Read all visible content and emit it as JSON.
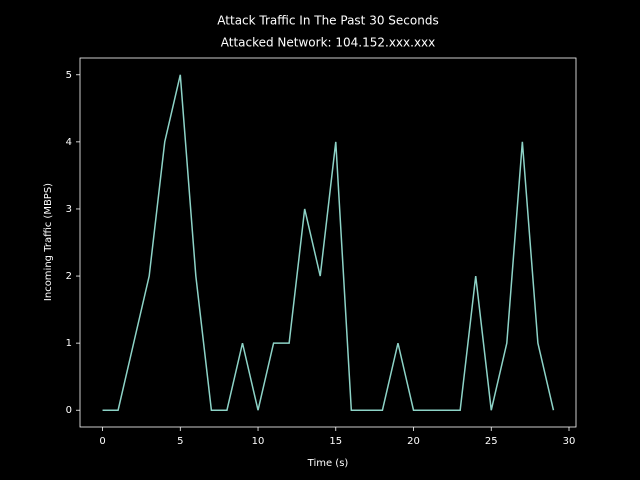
{
  "chart_data": {
    "type": "line",
    "title": "Attack Traffic In The Past 30 Seconds",
    "subtitle": "Attacked Network: 104.152.xxx.xxx",
    "x_label": "Time (s)",
    "y_label": "Incoming Traffic (MBPS)",
    "x": [
      0,
      1,
      2,
      3,
      4,
      5,
      6,
      7,
      8,
      9,
      10,
      11,
      12,
      13,
      14,
      15,
      16,
      17,
      18,
      19,
      20,
      21,
      22,
      23,
      24,
      25,
      26,
      27,
      28,
      29
    ],
    "series": [
      {
        "name": "traffic",
        "color": "#8dd3c7",
        "values": [
          0,
          0,
          1,
          2,
          4,
          5,
          2,
          0,
          0,
          1,
          0,
          1,
          1,
          3,
          2,
          4,
          0,
          0,
          0,
          1,
          0,
          0,
          0,
          0,
          2,
          0,
          1,
          4,
          1,
          0
        ]
      }
    ],
    "xlim": [
      -1.45,
      30.45
    ],
    "xticks": [
      0,
      5,
      10,
      15,
      20,
      25,
      30
    ],
    "ylim": [
      -0.25,
      5.25
    ],
    "yticks": [
      0,
      1,
      2,
      3,
      4,
      5
    ]
  }
}
